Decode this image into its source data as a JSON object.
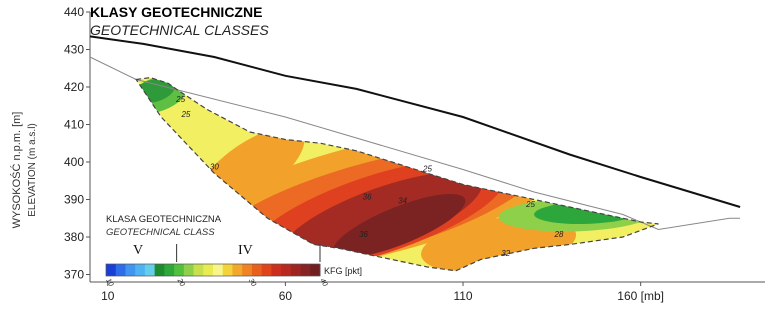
{
  "chart_data": {
    "type": "heatmap",
    "title": "KLASY GEOTECHNICZNE",
    "subtitle": "GEOTECHNICAL CLASSES",
    "ylabel": "WYSOKOŚĆ n.p.m. [m]",
    "ylabel_sub": "ELEVATION (m a.s.l)",
    "x_unit_label": "160 [mb]",
    "xlim": [
      5,
      195
    ],
    "ylim": [
      368,
      440
    ],
    "x_ticks": [
      10,
      60,
      110,
      160
    ],
    "y_ticks": [
      370,
      380,
      390,
      400,
      410,
      420,
      430,
      440
    ],
    "surface_line": {
      "x": [
        5,
        20,
        40,
        60,
        80,
        110,
        140,
        160,
        188
      ],
      "y": [
        433.5,
        431.5,
        428,
        423,
        419.5,
        412,
        402,
        396,
        388
      ]
    },
    "ground_line": {
      "x": [
        5,
        18,
        60,
        110,
        130,
        155,
        165,
        185,
        188
      ],
      "y": [
        428,
        422,
        412,
        398,
        392,
        386,
        382,
        385,
        385
      ]
    },
    "section_outline": {
      "x": [
        18,
        22,
        27,
        30,
        38,
        50,
        60,
        70,
        80,
        90,
        100,
        110,
        120,
        130,
        140,
        150,
        160,
        165,
        155,
        140,
        130,
        115,
        108,
        100,
        85,
        75,
        68,
        55,
        40,
        25,
        18
      ],
      "y": [
        422,
        422.5,
        421,
        419,
        414,
        408,
        406,
        405,
        403,
        400,
        397,
        394,
        392,
        390,
        388,
        386,
        384,
        383.5,
        380,
        378,
        377,
        374,
        371,
        372,
        375,
        377,
        378,
        385,
        397,
        412,
        422
      ]
    },
    "contour_labels": [
      {
        "x": 30.5,
        "y": 416,
        "value": "25"
      },
      {
        "x": 32,
        "y": 412,
        "value": "25"
      },
      {
        "x": 40,
        "y": 398,
        "value": "30"
      },
      {
        "x": 100,
        "y": 397.5,
        "value": "25"
      },
      {
        "x": 83,
        "y": 390,
        "value": "36"
      },
      {
        "x": 93,
        "y": 389,
        "value": "34"
      },
      {
        "x": 82,
        "y": 380,
        "value": "36"
      },
      {
        "x": 129,
        "y": 388,
        "value": "25"
      },
      {
        "x": 137,
        "y": 380,
        "value": "28"
      },
      {
        "x": 122,
        "y": 375,
        "value": "32"
      }
    ],
    "legend": {
      "title": "KLASA GEOTECHNICZNA",
      "subtitle": "GEOTECHNICAL CLASS",
      "class_labels": [
        "V",
        "IV"
      ],
      "colorbar_ticks": [
        "10",
        "20",
        "30",
        "40"
      ],
      "colorbar_unit": "KFG [pkt]",
      "colorbar_min": 10,
      "colorbar_max": 40,
      "colors": [
        "#1a3fd6",
        "#2d6ee8",
        "#3f95ef",
        "#4fb3f2",
        "#66cdea",
        "#1e8c2e",
        "#2ea83a",
        "#52bf3f",
        "#8ed04a",
        "#c9e04c",
        "#e8ec52",
        "#f8f58a",
        "#f3d23a",
        "#f2a82c",
        "#f08323",
        "#e8601e",
        "#e0441c",
        "#cd2f1e",
        "#b82a20",
        "#9e2622",
        "#872322",
        "#6f1f1f"
      ]
    },
    "grid": false
  }
}
